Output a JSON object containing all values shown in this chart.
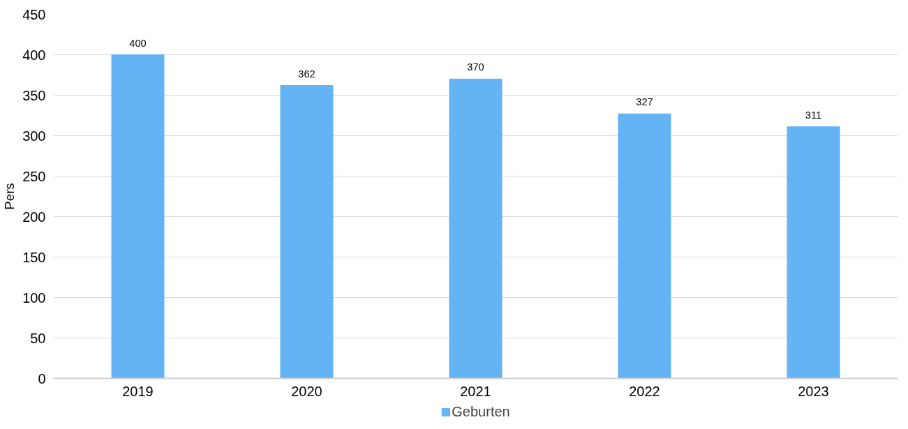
{
  "chart_data": {
    "type": "bar",
    "ylabel": "Pers",
    "categories": [
      "2019",
      "2020",
      "2021",
      "2022",
      "2023"
    ],
    "series": [
      {
        "name": "Geburten",
        "color": "#63b3f5",
        "values": [
          400,
          362,
          370,
          327,
          311
        ]
      }
    ],
    "ylim": [
      0,
      450
    ],
    "yticks": [
      0,
      50,
      100,
      150,
      200,
      250,
      300,
      350,
      400,
      450
    ],
    "grid": "y",
    "legend": "bottom",
    "data_labels": true
  }
}
